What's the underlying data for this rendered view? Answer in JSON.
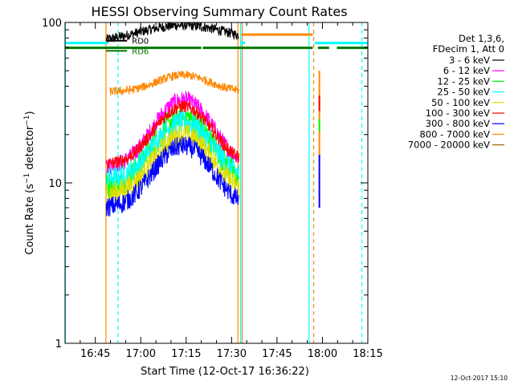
{
  "chart_data": {
    "type": "line",
    "title": "HESSI Observing Summary Count Rates",
    "xlabel": "Start Time (12-Oct-17 16:36:22)",
    "ylabel": "Count Rate (s⁻¹ detector⁻¹)",
    "ylabel_parts": {
      "a": "Count Rate (s",
      "e1": "−1",
      "b": " detector",
      "e2": "−1",
      "c": ")"
    },
    "yscale": "log",
    "ylim": [
      1,
      100
    ],
    "xlim_min": [
      0,
      100
    ],
    "x_ticks": [
      {
        "min": 10,
        "label": "16:45"
      },
      {
        "min": 25,
        "label": "17:00"
      },
      {
        "min": 40,
        "label": "17:15"
      },
      {
        "min": 55,
        "label": "17:30"
      },
      {
        "min": 70,
        "label": "17:45"
      },
      {
        "min": 85,
        "label": "18:00"
      },
      {
        "min": 100,
        "label": "18:15"
      }
    ],
    "y_ticks": [
      {
        "value": 1,
        "label": "1"
      },
      {
        "value": 10,
        "label": "10"
      },
      {
        "value": 100,
        "label": "100"
      }
    ],
    "legend_header": [
      "Det 1,3,6,",
      "FDecim 1, Att 0"
    ],
    "legend_position": "right",
    "series": [
      {
        "name": "3 - 6 keV",
        "color": "#000000",
        "shape": "flat",
        "amp": 0.95,
        "peak": 96,
        "base": 74,
        "noise": 0.035,
        "x_range": [
          13.6,
          57.5
        ]
      },
      {
        "name": "6 - 12 keV",
        "color": "#ff00ff",
        "shape": "bump",
        "peak": 33,
        "base": 12.5,
        "noise": 0.06,
        "x_range": [
          13.6,
          57.5
        ]
      },
      {
        "name": "12 - 25 keV",
        "color": "#00ff00",
        "shape": "bump",
        "peak": 26,
        "base": 9.5,
        "noise": 0.09,
        "x_range": [
          13.6,
          57.5
        ]
      },
      {
        "name": "25 - 50 keV",
        "color": "#00ffff",
        "shape": "bump",
        "peak": 24,
        "base": 10.5,
        "noise": 0.08,
        "x_range": [
          13.6,
          57.5
        ]
      },
      {
        "name": "50 - 100 keV",
        "color": "#dddd00",
        "shape": "bump",
        "peak": 20,
        "base": 8.5,
        "noise": 0.08,
        "x_range": [
          13.6,
          57.5
        ]
      },
      {
        "name": "100 - 300 keV",
        "color": "#ff0000",
        "shape": "bump",
        "peak": 30,
        "base": 13,
        "noise": 0.045,
        "x_range": [
          13.6,
          57.5
        ]
      },
      {
        "name": "300 - 800 keV",
        "color": "#0000ff",
        "shape": "bump",
        "peak": 17,
        "base": 7,
        "noise": 0.07,
        "x_range": [
          13.6,
          57.5
        ]
      },
      {
        "name": "800 - 7000 keV",
        "color": "#ff8800",
        "shape": "bump",
        "peak": 47,
        "base": 37,
        "noise": 0.03,
        "x_range": [
          14.8,
          57.5
        ]
      },
      {
        "name": "7000 - 20000 keV",
        "color": "#996600",
        "shape": "none"
      }
    ],
    "flag_bars": [
      {
        "label": "RD0",
        "color": "#000000",
        "y": 77,
        "segments": [
          [
            13.6,
            20.5
          ]
        ]
      },
      {
        "label": "RD6",
        "color": "#007700",
        "y": 66.5,
        "segments": [
          [
            13.6,
            20.5
          ]
        ]
      }
    ],
    "state_bars": [
      {
        "name": "cyan",
        "color": "#00ffff",
        "y": 74.5,
        "segments": [
          [
            0,
            14.2
          ],
          [
            58.2,
            59.5
          ],
          [
            82.5,
            100
          ]
        ]
      },
      {
        "name": "orange",
        "color": "#ff8800",
        "y": 84,
        "segments": [
          [
            58.2,
            81.8
          ]
        ]
      },
      {
        "name": "green",
        "color": "#007700",
        "y": 69.5,
        "segments": [
          [
            0,
            45
          ],
          [
            45.5,
            81.8
          ],
          [
            83.5,
            87.2
          ],
          [
            89.8,
            100
          ]
        ]
      }
    ],
    "vlines": [
      {
        "x": 0.1,
        "color": "#00ffff",
        "dash": false
      },
      {
        "x": 13.5,
        "color": "#ff8800",
        "dash": false
      },
      {
        "x": 17.5,
        "color": "#00ffff",
        "dash": true
      },
      {
        "x": 57.1,
        "color": "#ff8800",
        "dash": false
      },
      {
        "x": 58.0,
        "color": "#00ffff",
        "dash": false
      },
      {
        "x": 58.5,
        "color": "#ff8800",
        "dash": false
      },
      {
        "x": 80.6,
        "color": "#00ffff",
        "dash": false
      },
      {
        "x": 82.1,
        "color": "#ff8800",
        "dash": true
      },
      {
        "x": 98.0,
        "color": "#00ffff",
        "dash": true
      }
    ],
    "spike": {
      "x": 84.0,
      "segments": [
        {
          "color": "#0000ff",
          "y0": 7,
          "y1": 15
        },
        {
          "color": "#ff8800",
          "y0": 15,
          "y1": 50
        },
        {
          "color": "#ff0000",
          "y0": 28,
          "y1": 35
        },
        {
          "color": "#00ff00",
          "y0": 21,
          "y1": 25
        }
      ]
    },
    "grid": false
  },
  "footer": {
    "timestamp": "12-Oct-2017 15:10"
  }
}
